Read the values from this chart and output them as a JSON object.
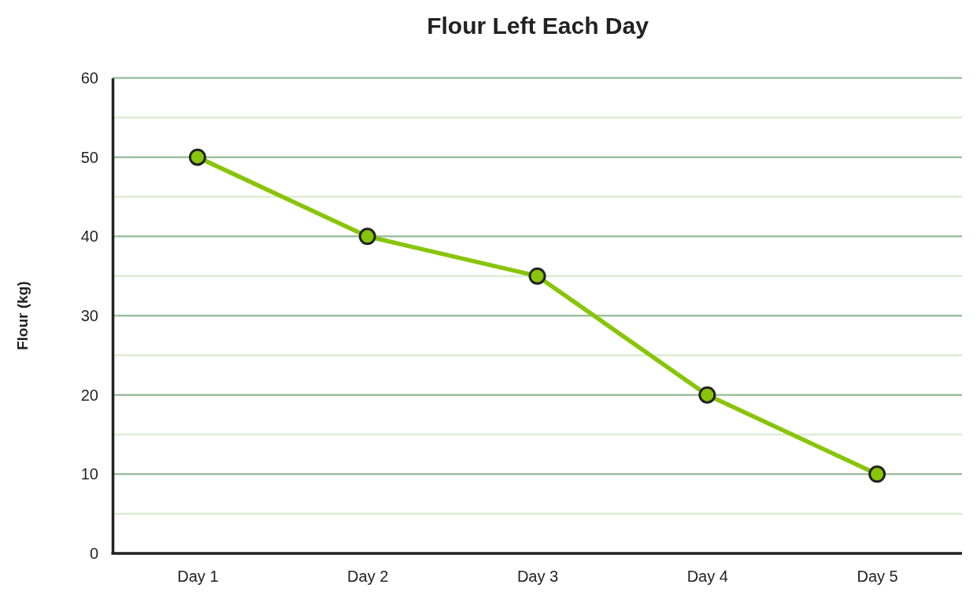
{
  "chart_data": {
    "type": "line",
    "title": "Flour Left Each Day",
    "ylabel": "Flour (kg)",
    "categories": [
      "Day 1",
      "Day 2",
      "Day 3",
      "Day 4",
      "Day 5"
    ],
    "series": [
      {
        "color": "#88c408",
        "values": [
          50,
          40,
          35,
          20,
          10
        ]
      }
    ],
    "ylim": [
      0,
      60
    ],
    "yticks": [
      0,
      {
        "value": 5,
        "label": null
      },
      10,
      {
        "value": 15,
        "label": null
      },
      20,
      {
        "value": 25,
        "label": null
      },
      30,
      {
        "value": 35,
        "label": null
      },
      40,
      {
        "value": 45,
        "label": null
      },
      50,
      {
        "value": 55,
        "label": null
      },
      60
    ],
    "grid": "y",
    "marker": "circle",
    "line_style": "solid"
  }
}
